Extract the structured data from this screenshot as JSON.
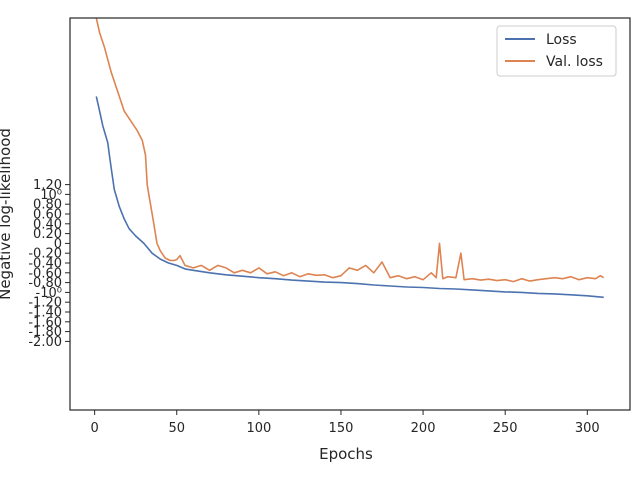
{
  "chart_data": {
    "type": "line",
    "xlabel": "Epochs",
    "ylabel": "Negative log-likelihood",
    "xlim": [
      -15,
      326
    ],
    "ylim": [
      -3.4,
      4.6
    ],
    "yscale": "symlog",
    "xticks": [
      0,
      50,
      100,
      150,
      200,
      250,
      300
    ],
    "yticks": [
      {
        "v": 1.2,
        "label": "1.20"
      },
      {
        "v": 1.0,
        "label": "10⁰"
      },
      {
        "v": 0.8,
        "label": "0.80"
      },
      {
        "v": 0.6,
        "label": "0.60"
      },
      {
        "v": 0.4,
        "label": "0.40"
      },
      {
        "v": 0.2,
        "label": "0.20"
      },
      {
        "v": 0.0,
        "label": "0"
      },
      {
        "v": -0.2,
        "label": "-0.20"
      },
      {
        "v": -0.4,
        "label": "-0.40"
      },
      {
        "v": -0.6,
        "label": "-0.60"
      },
      {
        "v": -0.8,
        "label": "-0.80"
      },
      {
        "v": -1.0,
        "label": "-10⁰"
      },
      {
        "v": -1.2,
        "label": "-1.20"
      },
      {
        "v": -1.4,
        "label": "-1.40"
      },
      {
        "v": -1.6,
        "label": "-1.60"
      },
      {
        "v": -1.8,
        "label": "-1.80"
      },
      {
        "v": -2.0,
        "label": "-2.00"
      }
    ],
    "grid": false,
    "legend": {
      "placement": "top-right"
    },
    "colors": {
      "loss": "#4c72b0",
      "val_loss": "#dd8452"
    },
    "series": [
      {
        "name": "Loss",
        "x": [
          1,
          3,
          5,
          8,
          9,
          10,
          12,
          15,
          18,
          21,
          25,
          30,
          35,
          40,
          45,
          50,
          55,
          60,
          70,
          80,
          90,
          100,
          110,
          120,
          130,
          140,
          150,
          160,
          170,
          180,
          190,
          200,
          210,
          220,
          230,
          240,
          250,
          260,
          270,
          280,
          290,
          300,
          310
        ],
        "y": [
          3.0,
          2.7,
          2.4,
          2.05,
          1.8,
          1.55,
          1.1,
          0.75,
          0.5,
          0.3,
          0.15,
          0.0,
          -0.2,
          -0.32,
          -0.4,
          -0.45,
          -0.52,
          -0.55,
          -0.6,
          -0.64,
          -0.67,
          -0.7,
          -0.72,
          -0.75,
          -0.77,
          -0.79,
          -0.8,
          -0.82,
          -0.85,
          -0.87,
          -0.89,
          -0.9,
          -0.92,
          -0.93,
          -0.95,
          -0.97,
          -0.99,
          -1.0,
          -1.02,
          -1.03,
          -1.05,
          -1.07,
          -1.1
        ]
      },
      {
        "name": "Val. loss",
        "x": [
          1,
          3,
          6,
          10,
          15,
          18,
          22,
          26,
          29,
          31,
          32,
          33,
          34,
          36,
          38,
          40,
          43,
          46,
          48,
          50,
          52,
          55,
          60,
          65,
          70,
          75,
          80,
          85,
          90,
          95,
          100,
          105,
          110,
          115,
          120,
          125,
          130,
          135,
          140,
          145,
          150,
          155,
          160,
          165,
          170,
          175,
          180,
          185,
          190,
          195,
          200,
          205,
          208,
          210,
          212,
          215,
          220,
          223,
          225,
          230,
          235,
          240,
          245,
          250,
          255,
          260,
          265,
          270,
          275,
          280,
          285,
          290,
          295,
          300,
          305,
          308,
          310
        ],
        "y": [
          4.6,
          4.3,
          4.0,
          3.5,
          3.0,
          2.7,
          2.5,
          2.3,
          2.1,
          1.8,
          1.2,
          1.0,
          0.8,
          0.4,
          0.0,
          -0.15,
          -0.3,
          -0.35,
          -0.35,
          -0.33,
          -0.25,
          -0.45,
          -0.5,
          -0.45,
          -0.55,
          -0.45,
          -0.5,
          -0.6,
          -0.55,
          -0.6,
          -0.5,
          -0.62,
          -0.58,
          -0.66,
          -0.6,
          -0.68,
          -0.62,
          -0.65,
          -0.64,
          -0.7,
          -0.66,
          -0.5,
          -0.55,
          -0.45,
          -0.6,
          -0.38,
          -0.7,
          -0.66,
          -0.72,
          -0.68,
          -0.74,
          -0.6,
          -0.7,
          0.0,
          -0.72,
          -0.68,
          -0.7,
          -0.2,
          -0.74,
          -0.72,
          -0.75,
          -0.73,
          -0.76,
          -0.74,
          -0.78,
          -0.72,
          -0.77,
          -0.74,
          -0.72,
          -0.7,
          -0.72,
          -0.68,
          -0.74,
          -0.7,
          -0.72,
          -0.66,
          -0.7
        ]
      }
    ]
  }
}
